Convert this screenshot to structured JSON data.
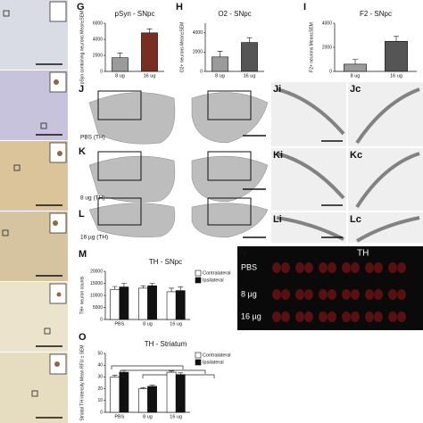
{
  "panel_letters": [
    "G",
    "H",
    "I",
    "J",
    "K",
    "L",
    "M",
    "N",
    "O"
  ],
  "subpanel_letters": [
    "Ji",
    "Jc",
    "Ki",
    "Kc",
    "Li",
    "Lc"
  ],
  "section_labels": [
    "PBS (TH)",
    "8 ug (TH)",
    "16 µg (TH)"
  ],
  "n_panel": {
    "title": "TH",
    "rows": [
      "PBS",
      "8 µg",
      "16 µg"
    ]
  },
  "chart_data": [
    {
      "type": "bar",
      "title": "pSyn - SNpc",
      "y_label": "pSyn containing neurons Mean±SEM",
      "categories": [
        "8 ug",
        "16 ug"
      ],
      "values": [
        1700,
        4800
      ],
      "errors": [
        600,
        500
      ],
      "colors": [
        "#9a9a9a",
        "#7a2e22"
      ],
      "ylim": [
        0,
        6000
      ],
      "yticks": [
        0,
        2000,
        4000,
        6000
      ]
    },
    {
      "type": "bar",
      "title": "O2 - SNpc",
      "y_label": "O2+ neurons Mean±SEM",
      "categories": [
        "8 ug",
        "16 ug"
      ],
      "values": [
        1500,
        3000
      ],
      "errors": [
        600,
        500
      ],
      "colors": [
        "#9a9a9a",
        "#555555"
      ],
      "ylim": [
        0,
        5000
      ],
      "yticks": [
        0,
        2000,
        4000
      ]
    },
    {
      "type": "bar",
      "title": "F2 - SNpc",
      "y_label": "F2+ neurons Mean±SEM",
      "categories": [
        "8 ug",
        "16 ug"
      ],
      "values": [
        600,
        2500
      ],
      "errors": [
        400,
        400
      ],
      "colors": [
        "#9a9a9a",
        "#555555"
      ],
      "ylim": [
        0,
        4000
      ],
      "yticks": [
        0,
        2000,
        4000
      ]
    },
    {
      "type": "grouped_bar",
      "title": "TH - SNpc",
      "y_label": "TH+ neuron counts",
      "categories": [
        "PBS",
        "8 ug",
        "16 ug"
      ],
      "series": [
        {
          "name": "Contralateral",
          "color": "#ffffff",
          "values": [
            12500,
            13000,
            11500
          ],
          "errors": [
            1200,
            1000,
            1500
          ]
        },
        {
          "name": "Ipsilateral",
          "color": "#111111",
          "values": [
            13500,
            14000,
            12000
          ],
          "errors": [
            1500,
            1000,
            1500
          ]
        }
      ],
      "ylim": [
        0,
        20000
      ],
      "yticks": [
        0,
        5000,
        10000,
        15000,
        20000
      ]
    },
    {
      "type": "grouped_bar",
      "title": "TH - Striatum",
      "y_label": "Striatal TH intensity Mean RFU ± SEM",
      "categories": [
        "PBS",
        "8 ug",
        "16 ug"
      ],
      "series": [
        {
          "name": "Contralateral",
          "color": "#ffffff",
          "values": [
            30,
            20,
            34
          ],
          "errors": [
            1.5,
            1,
            1
          ]
        },
        {
          "name": "Ipsilateral",
          "color": "#111111",
          "values": [
            34,
            22,
            32
          ],
          "errors": [
            1.5,
            1,
            1.5
          ]
        }
      ],
      "ylim": [
        0,
        50
      ],
      "yticks": [
        0,
        10,
        20,
        30,
        40,
        50
      ]
    }
  ]
}
